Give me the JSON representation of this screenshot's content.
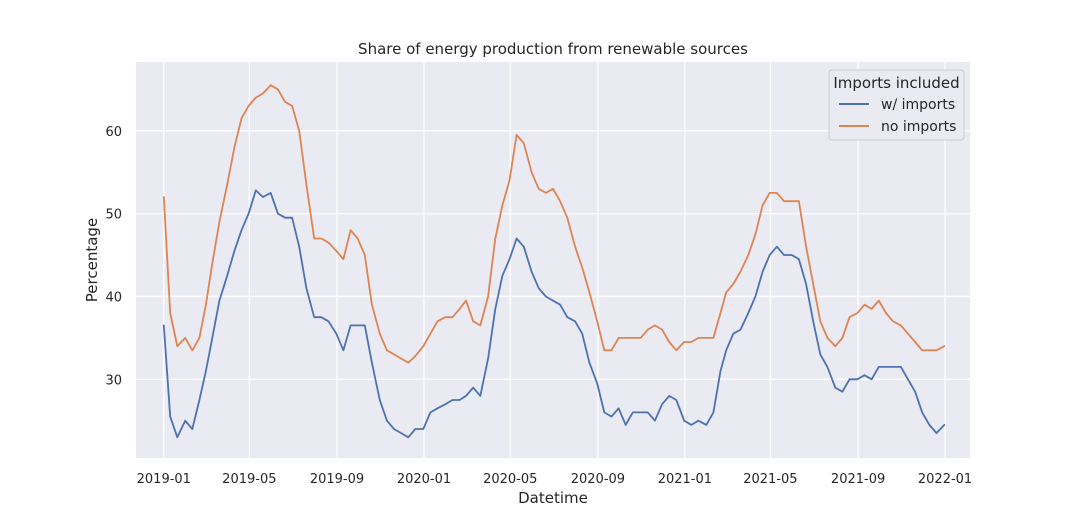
{
  "chart_data": {
    "type": "line",
    "title": "Share of energy production from renewable sources",
    "xlabel": "Datetime",
    "ylabel": "Percentage",
    "x_ticks": [
      "2019-01",
      "2019-05",
      "2019-09",
      "2020-01",
      "2020-05",
      "2020-09",
      "2021-01",
      "2021-05",
      "2021-09",
      "2022-01"
    ],
    "y_ticks": [
      30,
      40,
      50,
      60
    ],
    "ylim": [
      20.5,
      68.3
    ],
    "xlim": [
      "2018-11-23",
      "2022-02-05"
    ],
    "grid": true,
    "legend": {
      "title": "Imports included",
      "position": "top-right"
    },
    "x": [
      "2019-01-01",
      "2019-01-10",
      "2019-01-20",
      "2019-01-31",
      "2019-02-10",
      "2019-02-20",
      "2019-03-01",
      "2019-03-10",
      "2019-03-20",
      "2019-03-31",
      "2019-04-10",
      "2019-04-20",
      "2019-04-30",
      "2019-05-10",
      "2019-05-20",
      "2019-05-31",
      "2019-06-10",
      "2019-06-20",
      "2019-06-30",
      "2019-07-10",
      "2019-07-20",
      "2019-07-31",
      "2019-08-10",
      "2019-08-20",
      "2019-08-31",
      "2019-09-10",
      "2019-09-20",
      "2019-09-30",
      "2019-10-10",
      "2019-10-20",
      "2019-10-31",
      "2019-11-10",
      "2019-11-20",
      "2019-11-30",
      "2019-12-10",
      "2019-12-20",
      "2019-12-31",
      "2020-01-10",
      "2020-01-20",
      "2020-01-31",
      "2020-02-10",
      "2020-02-20",
      "2020-02-29",
      "2020-03-10",
      "2020-03-20",
      "2020-03-31",
      "2020-04-10",
      "2020-04-20",
      "2020-04-30",
      "2020-05-10",
      "2020-05-20",
      "2020-05-31",
      "2020-06-10",
      "2020-06-20",
      "2020-06-30",
      "2020-07-10",
      "2020-07-20",
      "2020-07-31",
      "2020-08-10",
      "2020-08-20",
      "2020-08-31",
      "2020-09-10",
      "2020-09-20",
      "2020-09-30",
      "2020-10-10",
      "2020-10-20",
      "2020-10-31",
      "2020-11-10",
      "2020-11-20",
      "2020-11-30",
      "2020-12-10",
      "2020-12-20",
      "2020-12-31",
      "2021-01-10",
      "2021-01-20",
      "2021-01-31",
      "2021-02-10",
      "2021-02-20",
      "2021-02-28",
      "2021-03-10",
      "2021-03-20",
      "2021-03-31",
      "2021-04-10",
      "2021-04-20",
      "2021-04-30",
      "2021-05-10",
      "2021-05-20",
      "2021-05-31",
      "2021-06-10",
      "2021-06-20",
      "2021-06-30",
      "2021-07-10",
      "2021-07-20",
      "2021-07-31",
      "2021-08-10",
      "2021-08-20",
      "2021-08-31",
      "2021-09-10",
      "2021-09-20",
      "2021-09-30",
      "2021-10-10",
      "2021-10-20",
      "2021-10-31",
      "2021-11-10",
      "2021-11-20",
      "2021-11-30",
      "2021-12-10",
      "2021-12-20",
      "2021-12-31"
    ],
    "series": [
      {
        "name": "w/ imports",
        "color": "#4c72b0",
        "values": [
          36.5,
          25.5,
          23.0,
          25.0,
          24.0,
          27.5,
          31.0,
          35.0,
          39.5,
          42.5,
          45.5,
          48.0,
          50.0,
          52.8,
          52.0,
          52.5,
          50.0,
          49.5,
          49.5,
          46.0,
          41.0,
          37.5,
          37.5,
          37.0,
          35.5,
          33.5,
          36.5,
          36.5,
          36.5,
          32.0,
          27.5,
          25.0,
          24.0,
          23.5,
          23.0,
          24.0,
          24.0,
          26.0,
          26.5,
          27.0,
          27.5,
          27.5,
          28.0,
          29.0,
          28.0,
          32.5,
          38.5,
          42.5,
          44.5,
          47.0,
          46.0,
          43.0,
          41.0,
          40.0,
          39.5,
          39.0,
          37.5,
          37.0,
          35.5,
          32.0,
          29.5,
          26.0,
          25.5,
          26.5,
          24.5,
          26.0,
          26.0,
          26.0,
          25.0,
          27.0,
          28.0,
          27.5,
          25.0,
          24.5,
          25.0,
          24.5,
          26.0,
          31.0,
          33.5,
          35.5,
          36.0,
          38.0,
          40.0,
          43.0,
          45.0,
          46.0,
          45.0,
          45.0,
          44.5,
          41.5,
          37.0,
          33.0,
          31.5,
          29.0,
          28.5,
          30.0,
          30.0,
          30.5,
          30.0,
          31.5,
          31.5,
          31.5,
          31.5,
          30.0,
          28.5,
          26.0,
          24.5,
          23.5,
          24.5
        ]
      },
      {
        "name": "no imports",
        "color": "#dd8452",
        "values": [
          52.0,
          38.0,
          34.0,
          35.0,
          33.5,
          35.0,
          39.0,
          44.0,
          49.0,
          53.5,
          58.0,
          61.5,
          63.0,
          64.0,
          64.5,
          65.5,
          65.0,
          63.5,
          63.0,
          60.0,
          53.5,
          47.0,
          47.0,
          46.5,
          45.5,
          44.5,
          48.0,
          47.0,
          45.0,
          39.0,
          35.5,
          33.5,
          33.0,
          32.5,
          32.0,
          32.8,
          34.0,
          35.5,
          37.0,
          37.5,
          37.5,
          38.5,
          39.5,
          37.0,
          36.5,
          40.0,
          47.0,
          51.0,
          54.0,
          59.5,
          58.5,
          55.0,
          53.0,
          52.5,
          53.0,
          51.5,
          49.5,
          46.0,
          43.5,
          40.5,
          37.0,
          33.5,
          33.5,
          35.0,
          35.0,
          35.0,
          35.0,
          36.0,
          36.5,
          36.0,
          34.5,
          33.5,
          34.5,
          34.5,
          35.0,
          35.0,
          35.0,
          38.0,
          40.5,
          41.5,
          43.0,
          45.0,
          47.5,
          51.0,
          52.5,
          52.5,
          51.5,
          51.5,
          51.5,
          46.0,
          41.5,
          37.0,
          35.0,
          34.0,
          35.0,
          37.5,
          38.0,
          39.0,
          38.5,
          39.5,
          38.0,
          37.0,
          36.5,
          35.5,
          34.5,
          33.5,
          33.5,
          33.5,
          34.0
        ]
      }
    ]
  }
}
